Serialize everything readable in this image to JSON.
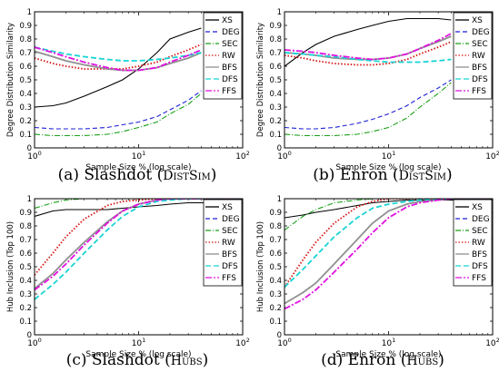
{
  "figure": {
    "captions": [
      {
        "main": "(a) Slashdot (",
        "tag": "DistSim",
        "close": ")"
      },
      {
        "main": "(b) Enron (",
        "tag": "DistSim",
        "close": ")"
      },
      {
        "main": "(c) Slashdot (",
        "tag": "Hubs",
        "close": ")"
      },
      {
        "main": "(d) Enron (",
        "tag": "Hubs",
        "close": ")"
      }
    ]
  },
  "legend_styles": {
    "XS": {
      "color": "#000000",
      "dash": ""
    },
    "DEG": {
      "color": "#1f1fd6",
      "dash": "5,3"
    },
    "SEC": {
      "color": "#19a019",
      "dash": "6,2,1,2"
    },
    "RW": {
      "color": "#d41313",
      "dash": "1.5,2"
    },
    "BFS": {
      "color": "#909090",
      "dash": ""
    },
    "DFS": {
      "color": "#19d4d4",
      "dash": "6,3"
    },
    "FFS": {
      "color": "#e010e0",
      "dash": "7,2,2,2"
    }
  },
  "chart_data": [
    {
      "type": "line",
      "xlabel": "Sample Size % (log scale)",
      "ylabel": "Degree Distribution Similarity",
      "xscale": "log",
      "xlim": [
        1,
        100
      ],
      "ylim": [
        0,
        1
      ],
      "xticks": [
        "10^0",
        "10^1",
        "10^2"
      ],
      "yticks": [
        "0",
        "0.1",
        "0.2",
        "0.3",
        "0.4",
        "0.5",
        "0.6",
        "0.7",
        "0.8",
        "0.9",
        "1"
      ],
      "legend": "right",
      "series": [
        {
          "name": "XS",
          "x": [
            1,
            1.5,
            2,
            3,
            5,
            7,
            10,
            15,
            20,
            30,
            40
          ],
          "y": [
            0.3,
            0.31,
            0.33,
            0.38,
            0.45,
            0.5,
            0.58,
            0.7,
            0.8,
            0.85,
            0.88
          ]
        },
        {
          "name": "DEG",
          "x": [
            1,
            1.5,
            2,
            3,
            5,
            7,
            10,
            15,
            20,
            30,
            40
          ],
          "y": [
            0.15,
            0.14,
            0.14,
            0.14,
            0.15,
            0.17,
            0.19,
            0.23,
            0.28,
            0.35,
            0.42
          ]
        },
        {
          "name": "SEC",
          "x": [
            1,
            1.5,
            2,
            3,
            5,
            7,
            10,
            15,
            20,
            30,
            40
          ],
          "y": [
            0.1,
            0.09,
            0.09,
            0.09,
            0.1,
            0.12,
            0.15,
            0.19,
            0.25,
            0.32,
            0.4
          ]
        },
        {
          "name": "RW",
          "x": [
            1,
            1.5,
            2,
            3,
            5,
            7,
            10,
            15,
            20,
            30,
            40
          ],
          "y": [
            0.66,
            0.62,
            0.6,
            0.58,
            0.58,
            0.58,
            0.6,
            0.63,
            0.67,
            0.72,
            0.76
          ]
        },
        {
          "name": "BFS",
          "x": [
            1,
            1.5,
            2,
            3,
            5,
            7,
            10,
            15,
            20,
            30,
            40
          ],
          "y": [
            0.71,
            0.67,
            0.64,
            0.61,
            0.58,
            0.57,
            0.57,
            0.59,
            0.62,
            0.66,
            0.7
          ]
        },
        {
          "name": "DFS",
          "x": [
            1,
            1.5,
            2,
            3,
            5,
            7,
            10,
            15,
            20,
            30,
            40
          ],
          "y": [
            0.74,
            0.71,
            0.69,
            0.67,
            0.65,
            0.64,
            0.64,
            0.65,
            0.66,
            0.68,
            0.7
          ]
        },
        {
          "name": "FFS",
          "x": [
            1,
            1.5,
            2,
            3,
            5,
            7,
            10,
            15,
            20,
            30,
            40
          ],
          "y": [
            0.74,
            0.7,
            0.67,
            0.63,
            0.59,
            0.57,
            0.57,
            0.59,
            0.63,
            0.68,
            0.72
          ]
        }
      ]
    },
    {
      "type": "line",
      "xlabel": "Sample Size % (log scale)",
      "ylabel": "Degree Distribution Similarity",
      "xscale": "log",
      "xlim": [
        1,
        100
      ],
      "ylim": [
        0,
        1
      ],
      "xticks": [
        "10^0",
        "10^1",
        "10^2"
      ],
      "yticks": [
        "0",
        "0.1",
        "0.2",
        "0.3",
        "0.4",
        "0.5",
        "0.6",
        "0.7",
        "0.8",
        "0.9",
        "1"
      ],
      "legend": "right",
      "series": [
        {
          "name": "XS",
          "x": [
            1,
            1.5,
            2,
            3,
            5,
            7,
            10,
            15,
            20,
            30,
            40
          ],
          "y": [
            0.6,
            0.7,
            0.76,
            0.82,
            0.87,
            0.9,
            0.93,
            0.95,
            0.95,
            0.95,
            0.94
          ]
        },
        {
          "name": "DEG",
          "x": [
            1,
            1.5,
            2,
            3,
            5,
            7,
            10,
            15,
            20,
            30,
            40
          ],
          "y": [
            0.15,
            0.14,
            0.14,
            0.15,
            0.18,
            0.21,
            0.25,
            0.31,
            0.37,
            0.44,
            0.5
          ]
        },
        {
          "name": "SEC",
          "x": [
            1,
            1.5,
            2,
            3,
            5,
            7,
            10,
            15,
            20,
            30,
            40
          ],
          "y": [
            0.1,
            0.09,
            0.09,
            0.09,
            0.1,
            0.12,
            0.15,
            0.22,
            0.3,
            0.4,
            0.48
          ]
        },
        {
          "name": "RW",
          "x": [
            1,
            1.5,
            2,
            3,
            5,
            7,
            10,
            15,
            20,
            30,
            40
          ],
          "y": [
            0.68,
            0.66,
            0.64,
            0.62,
            0.61,
            0.61,
            0.62,
            0.65,
            0.69,
            0.74,
            0.78
          ]
        },
        {
          "name": "BFS",
          "x": [
            1,
            1.5,
            2,
            3,
            5,
            7,
            10,
            15,
            20,
            30,
            40
          ],
          "y": [
            0.7,
            0.69,
            0.68,
            0.66,
            0.65,
            0.65,
            0.66,
            0.69,
            0.73,
            0.78,
            0.82
          ]
        },
        {
          "name": "DFS",
          "x": [
            1,
            1.5,
            2,
            3,
            5,
            7,
            10,
            15,
            20,
            30,
            40
          ],
          "y": [
            0.7,
            0.69,
            0.68,
            0.67,
            0.65,
            0.64,
            0.63,
            0.63,
            0.63,
            0.64,
            0.65
          ]
        },
        {
          "name": "FFS",
          "x": [
            1,
            1.5,
            2,
            3,
            5,
            7,
            10,
            15,
            20,
            30,
            40
          ],
          "y": [
            0.72,
            0.71,
            0.7,
            0.68,
            0.66,
            0.65,
            0.66,
            0.69,
            0.73,
            0.79,
            0.84
          ]
        }
      ]
    },
    {
      "type": "line",
      "xlabel": "Sample Size % (log scale)",
      "ylabel": "Hub Inclusion (Top 100)",
      "xscale": "log",
      "xlim": [
        1,
        100
      ],
      "ylim": [
        0,
        1
      ],
      "xticks": [
        "10^0",
        "10^1",
        "10^2"
      ],
      "yticks": [
        "0",
        "0.1",
        "0.2",
        "0.3",
        "0.4",
        "0.5",
        "0.6",
        "0.7",
        "0.8",
        "0.9",
        "1"
      ],
      "legend": "right",
      "series": [
        {
          "name": "XS",
          "x": [
            1,
            1.5,
            2,
            3,
            5,
            7,
            10,
            15,
            20,
            30,
            40,
            100
          ],
          "y": [
            0.87,
            0.91,
            0.92,
            0.92,
            0.92,
            0.93,
            0.94,
            0.95,
            0.96,
            0.97,
            0.97,
            0.97
          ]
        },
        {
          "name": "DEG",
          "x": [
            1,
            1.5,
            2,
            3,
            5,
            7,
            10,
            15,
            20,
            30,
            40,
            100
          ],
          "y": [
            1,
            1,
            1,
            1,
            1,
            1,
            1,
            1,
            1,
            1,
            1,
            1
          ]
        },
        {
          "name": "SEC",
          "x": [
            1,
            1.5,
            2,
            3,
            5,
            7,
            10,
            15,
            20,
            30,
            40,
            100
          ],
          "y": [
            0.93,
            0.97,
            0.99,
            1,
            1,
            1,
            1,
            1,
            1,
            1,
            1,
            1
          ]
        },
        {
          "name": "RW",
          "x": [
            1,
            1.5,
            2,
            3,
            5,
            7,
            10,
            15,
            20,
            30,
            40,
            100
          ],
          "y": [
            0.44,
            0.6,
            0.72,
            0.85,
            0.95,
            0.98,
            0.99,
            1,
            1,
            1,
            1,
            1
          ]
        },
        {
          "name": "BFS",
          "x": [
            1,
            1.5,
            2,
            3,
            5,
            7,
            10,
            15,
            20,
            30,
            40,
            100
          ],
          "y": [
            0.34,
            0.45,
            0.55,
            0.68,
            0.83,
            0.91,
            0.96,
            0.99,
            1,
            1,
            1,
            1
          ]
        },
        {
          "name": "DFS",
          "x": [
            1,
            1.5,
            2,
            3,
            5,
            7,
            10,
            15,
            20,
            30,
            40,
            100
          ],
          "y": [
            0.26,
            0.37,
            0.46,
            0.6,
            0.77,
            0.87,
            0.94,
            0.98,
            0.99,
            1,
            1,
            1
          ]
        },
        {
          "name": "FFS",
          "x": [
            1,
            1.5,
            2,
            3,
            5,
            7,
            10,
            15,
            20,
            30,
            40,
            100
          ],
          "y": [
            0.33,
            0.43,
            0.52,
            0.66,
            0.82,
            0.91,
            0.96,
            0.99,
            1,
            1,
            1,
            1
          ]
        }
      ]
    },
    {
      "type": "line",
      "xlabel": "Sample Size % (log scale)",
      "ylabel": "Hub Inclusion (Top 100)",
      "xscale": "log",
      "xlim": [
        1,
        100
      ],
      "ylim": [
        0,
        1
      ],
      "xticks": [
        "10^0",
        "10^1",
        "10^2"
      ],
      "yticks": [
        "0",
        "0.1",
        "0.2",
        "0.3",
        "0.4",
        "0.5",
        "0.6",
        "0.7",
        "0.8",
        "0.9",
        "1"
      ],
      "legend": "right",
      "series": [
        {
          "name": "XS",
          "x": [
            1,
            1.5,
            2,
            3,
            5,
            7,
            10,
            15,
            20,
            30,
            40,
            100
          ],
          "y": [
            0.86,
            0.88,
            0.9,
            0.92,
            0.95,
            0.97,
            0.98,
            0.99,
            0.99,
            0.99,
            0.99,
            0.99
          ]
        },
        {
          "name": "DEG",
          "x": [
            1,
            1.5,
            2,
            3,
            5,
            7,
            10,
            15,
            20,
            30,
            40,
            100
          ],
          "y": [
            1,
            1,
            1,
            1,
            1,
            1,
            1,
            1,
            1,
            1,
            1,
            1
          ]
        },
        {
          "name": "SEC",
          "x": [
            1,
            1.5,
            2,
            3,
            5,
            7,
            10,
            15,
            20,
            30,
            40,
            100
          ],
          "y": [
            0.77,
            0.87,
            0.92,
            0.97,
            0.99,
            1,
            1,
            1,
            1,
            1,
            1,
            1
          ]
        },
        {
          "name": "RW",
          "x": [
            1,
            1.5,
            2,
            3,
            5,
            7,
            10,
            15,
            20,
            30,
            40,
            100
          ],
          "y": [
            0.35,
            0.55,
            0.68,
            0.82,
            0.94,
            0.98,
            1,
            1,
            1,
            1,
            1,
            1
          ]
        },
        {
          "name": "BFS",
          "x": [
            1,
            1.5,
            2,
            3,
            5,
            7,
            10,
            15,
            20,
            30,
            40,
            100
          ],
          "y": [
            0.23,
            0.31,
            0.38,
            0.52,
            0.7,
            0.82,
            0.91,
            0.96,
            0.98,
            0.99,
            1,
            1
          ]
        },
        {
          "name": "DFS",
          "x": [
            1,
            1.5,
            2,
            3,
            5,
            7,
            10,
            15,
            20,
            30,
            40,
            100
          ],
          "y": [
            0.35,
            0.48,
            0.58,
            0.72,
            0.86,
            0.93,
            0.96,
            0.98,
            0.99,
            1,
            1,
            1
          ]
        },
        {
          "name": "FFS",
          "x": [
            1,
            1.5,
            2,
            3,
            5,
            7,
            10,
            15,
            20,
            30,
            40,
            100
          ],
          "y": [
            0.19,
            0.26,
            0.33,
            0.46,
            0.63,
            0.75,
            0.86,
            0.94,
            0.97,
            0.99,
            1,
            1
          ]
        }
      ]
    }
  ]
}
